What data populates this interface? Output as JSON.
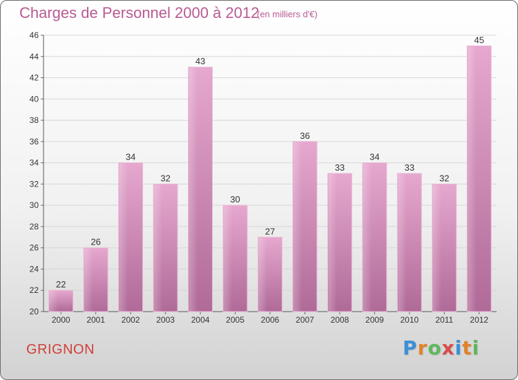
{
  "header": {
    "title": "Charges de Personnel 2000 à 2012",
    "subtitle": "(en milliers d'€)"
  },
  "footer": {
    "city": "GRIGNON",
    "logo_letters": [
      "P",
      "r",
      "o",
      "x",
      "i",
      "t",
      "i"
    ],
    "logo_colors": [
      "#3a8fd8",
      "#e0832a",
      "#5cb85c",
      "#d94b4b",
      "#3a8fd8",
      "#e0832a",
      "#5cb85c"
    ]
  },
  "chart_data": {
    "type": "bar",
    "title": "Charges de Personnel 2000 à 2012",
    "subtitle": "(en milliers d'€)",
    "categories": [
      "2000",
      "2001",
      "2002",
      "2003",
      "2004",
      "2005",
      "2006",
      "2007",
      "2008",
      "2009",
      "2010",
      "2011",
      "2012"
    ],
    "values": [
      22,
      26,
      34,
      32,
      43,
      30,
      27,
      36,
      33,
      34,
      33,
      32,
      45
    ],
    "ylim": [
      20,
      46
    ],
    "yticks": [
      20,
      22,
      24,
      26,
      28,
      30,
      32,
      34,
      36,
      38,
      40,
      42,
      44,
      46
    ],
    "grid": true,
    "bar_color": "#d88cbb",
    "xlabel": "",
    "ylabel": ""
  }
}
